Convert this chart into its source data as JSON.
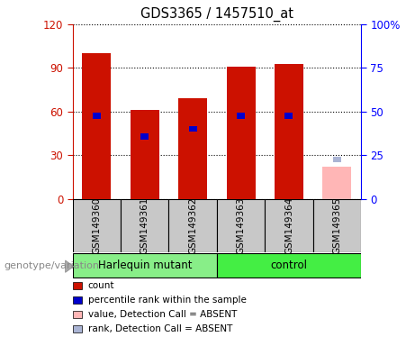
{
  "title": "GDS3365 / 1457510_at",
  "categories": [
    "GSM149360",
    "GSM149361",
    "GSM149362",
    "GSM149363",
    "GSM149364",
    "GSM149365"
  ],
  "count_values": [
    100,
    61,
    69,
    91,
    93,
    null
  ],
  "rank_values": [
    57,
    43,
    48,
    57,
    57,
    null
  ],
  "absent_value": 22,
  "absent_rank": 27,
  "ylim_left": [
    0,
    120
  ],
  "ylim_right": [
    0,
    100
  ],
  "yticks_left": [
    0,
    30,
    60,
    90,
    120
  ],
  "yticks_right": [
    0,
    25,
    50,
    75,
    100
  ],
  "ytick_labels_right": [
    "0",
    "25",
    "50",
    "75",
    "100%"
  ],
  "ytick_labels_left": [
    "0",
    "30",
    "60",
    "90",
    "120"
  ],
  "bar_color_red": "#cc1100",
  "bar_color_blue": "#0000cc",
  "bar_color_pink": "#ffb6b6",
  "bar_color_lightblue": "#aab4d4",
  "genotype_groups": [
    {
      "label": "Harlequin mutant",
      "indices": [
        0,
        1,
        2
      ],
      "color": "#88ee88"
    },
    {
      "label": "control",
      "indices": [
        3,
        4,
        5
      ],
      "color": "#44ee44"
    }
  ],
  "genotype_label": "genotype/variation",
  "legend_items": [
    {
      "label": "count",
      "color": "#cc1100"
    },
    {
      "label": "percentile rank within the sample",
      "color": "#0000cc"
    },
    {
      "label": "value, Detection Call = ABSENT",
      "color": "#ffb6b6"
    },
    {
      "label": "rank, Detection Call = ABSENT",
      "color": "#aab4d4"
    }
  ],
  "sample_bg": "#c8c8c8",
  "plot_bg": "#ffffff",
  "figsize": [
    4.61,
    3.84
  ],
  "dpi": 100
}
